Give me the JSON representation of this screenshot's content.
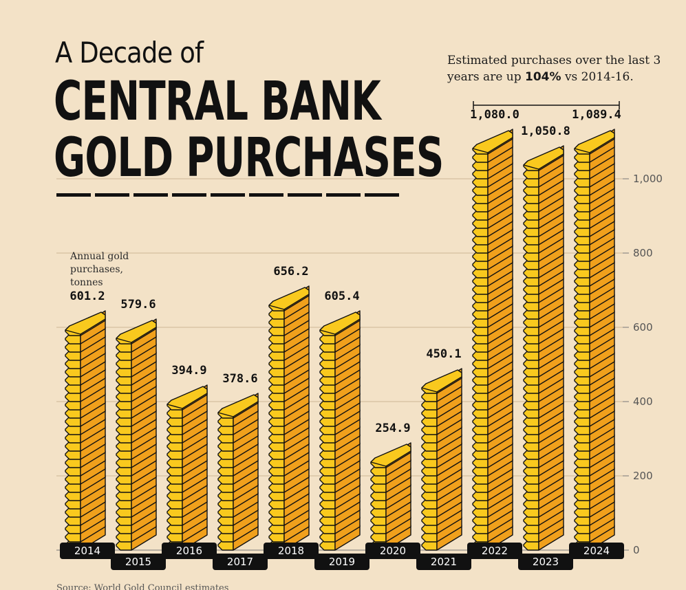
{
  "title": {
    "line1": "A Decade of",
    "line2": "CENTRAL BANK",
    "line3": "GOLD PURCHASES"
  },
  "unit_label": "Annual gold purchases, tonnes",
  "annotation": {
    "prefix": "Estimated purchases over the last 3 years are up ",
    "highlight": "104%",
    "suffix": " vs 2014-16."
  },
  "source": "Source: World Gold Council estimates",
  "colors": {
    "background": "#f3e2c7",
    "gold_face": "#f9c91e",
    "gold_side": "#f0a01c",
    "outline": "#111111",
    "label_box": "#111111"
  },
  "chart_data": {
    "type": "bar",
    "categories": [
      "2014",
      "2015",
      "2016",
      "2017",
      "2018",
      "2019",
      "2020",
      "2021",
      "2022",
      "2023",
      "2024"
    ],
    "values": [
      601.2,
      579.6,
      394.9,
      378.6,
      656.2,
      605.4,
      254.9,
      450.1,
      1080.0,
      1050.8,
      1089.4
    ],
    "value_labels": [
      "601.2",
      "579.6",
      "394.9",
      "378.6",
      "656.2",
      "605.4",
      "254.9",
      "450.1",
      "1,080.0",
      "1,050.8",
      "1,089.4"
    ],
    "yticks": [
      0,
      200,
      400,
      600,
      800,
      1000
    ],
    "ytick_labels": [
      "0",
      "200",
      "400",
      "600",
      "800",
      "1,000"
    ],
    "ylim": [
      0,
      1100
    ],
    "grid": true,
    "legend": "none"
  }
}
